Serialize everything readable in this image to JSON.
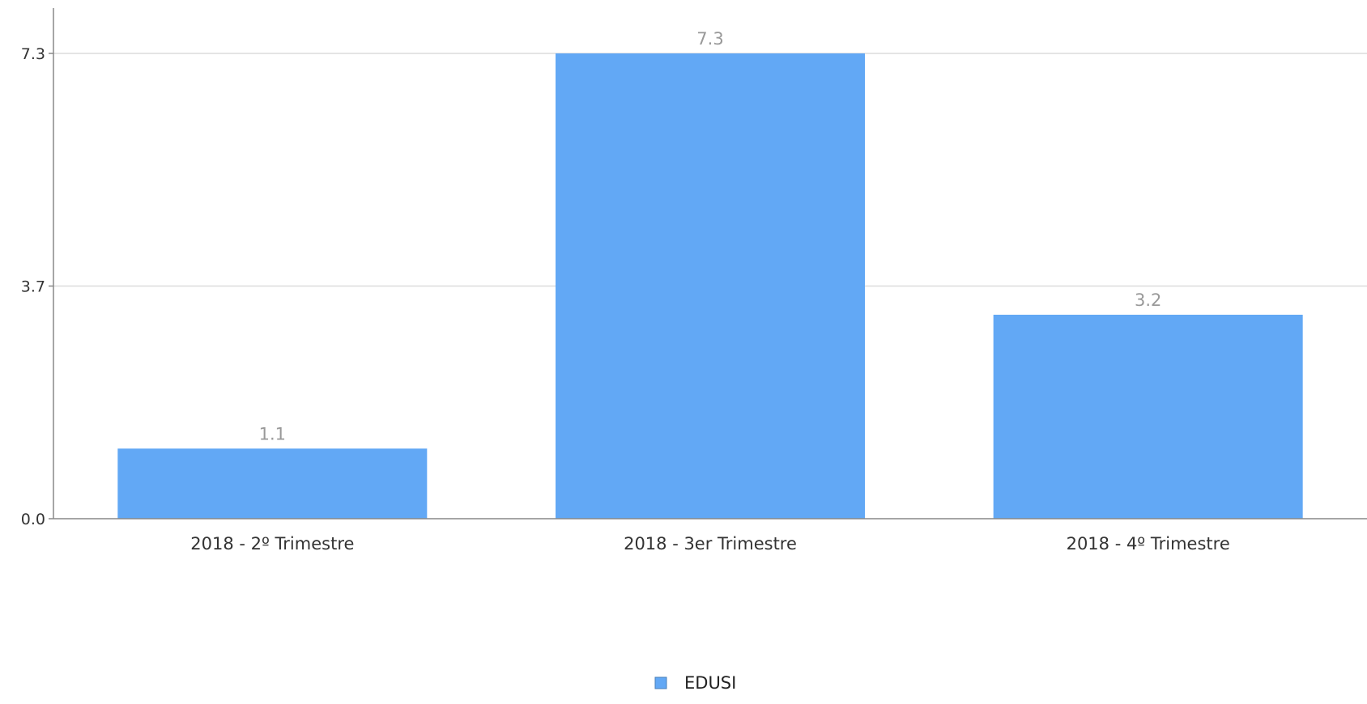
{
  "chart_data": {
    "type": "bar",
    "categories": [
      "2018 - 2º Trimestre",
      "2018 - 3er Trimestre",
      "2018 - 4º Trimestre"
    ],
    "series": [
      {
        "name": "EDUSI",
        "values": [
          1.1,
          7.3,
          3.2
        ],
        "color": "#62a8f5"
      }
    ],
    "data_labels": [
      "1.1",
      "7.3",
      "3.2"
    ],
    "y_ticks": [
      {
        "value": 0.0,
        "label": "0.0"
      },
      {
        "value": 3.65,
        "label": "3.7"
      },
      {
        "value": 7.3,
        "label": "7.3"
      }
    ],
    "ylim": [
      0,
      7.3
    ],
    "grid": true,
    "legend_position": "bottom-center",
    "title": "",
    "xlabel": "",
    "ylabel": ""
  }
}
